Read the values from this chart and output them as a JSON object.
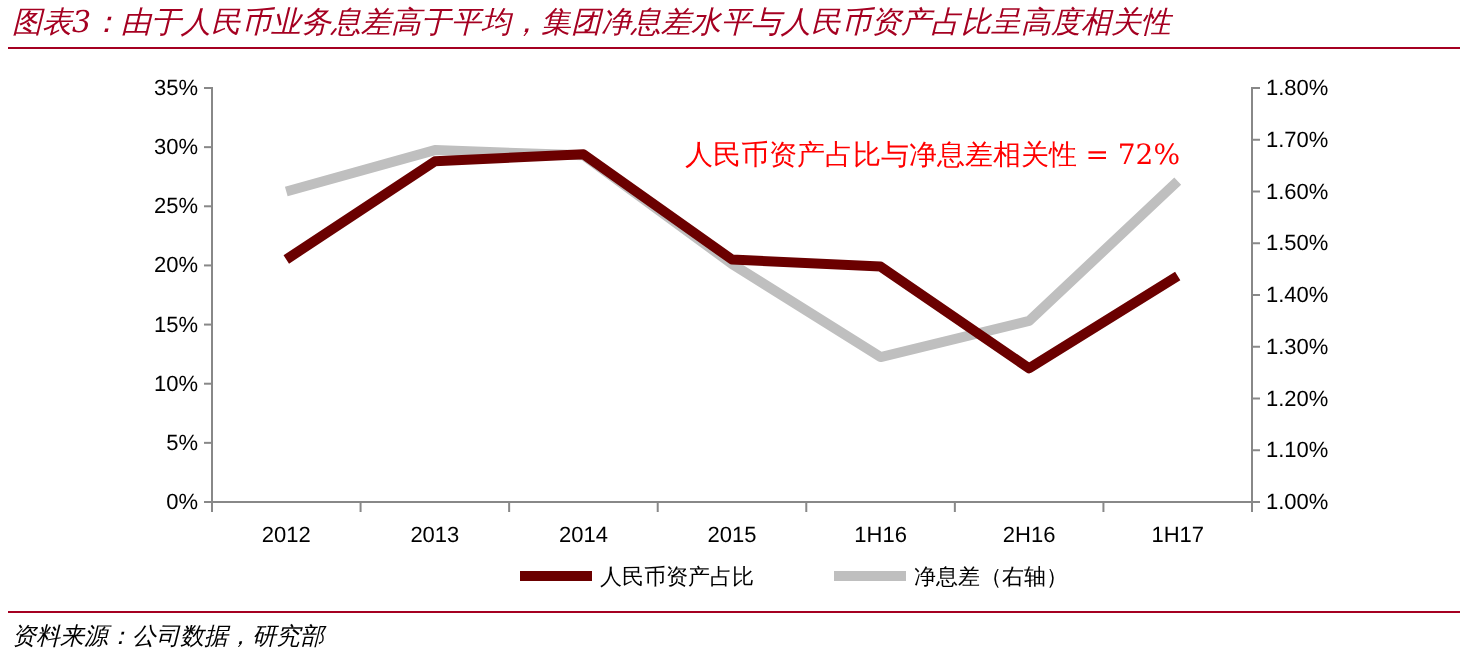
{
  "chart_data": {
    "type": "line",
    "title": "图表3：由于人民币业务息差高于平均，集团净息差水平与人民币资产占比呈高度相关性",
    "categories": [
      "2012",
      "2013",
      "2014",
      "2015",
      "1H16",
      "2H16",
      "1H17"
    ],
    "series": [
      {
        "name": "人民币资产占比",
        "color": "#6b0000",
        "values": [
          20.5,
          28.8,
          29.4,
          20.5,
          19.9,
          11.3,
          19.1
        ]
      },
      {
        "name": "净息差（右轴）",
        "color": "#bfbfbf",
        "axis": "y2",
        "values": [
          1.6,
          1.68,
          1.67,
          1.46,
          1.28,
          1.35,
          1.62
        ]
      }
    ],
    "ylim": [
      0,
      35
    ],
    "yticks": [
      {
        "value": 0,
        "label": "0%"
      },
      {
        "value": 5,
        "label": "5%"
      },
      {
        "value": 10,
        "label": "10%"
      },
      {
        "value": 15,
        "label": "15%"
      },
      {
        "value": 20,
        "label": "20%"
      },
      {
        "value": 25,
        "label": "25%"
      },
      {
        "value": 30,
        "label": "30%"
      },
      {
        "value": 35,
        "label": "35%"
      }
    ],
    "y2lim": [
      1.0,
      1.8
    ],
    "y2ticks": [
      {
        "value": 1.0,
        "label": "1.00%"
      },
      {
        "value": 1.1,
        "label": "1.10%"
      },
      {
        "value": 1.2,
        "label": "1.20%"
      },
      {
        "value": 1.3,
        "label": "1.30%"
      },
      {
        "value": 1.4,
        "label": "1.40%"
      },
      {
        "value": 1.5,
        "label": "1.50%"
      },
      {
        "value": 1.6,
        "label": "1.60%"
      },
      {
        "value": 1.7,
        "label": "1.70%"
      },
      {
        "value": 1.8,
        "label": "1.80%"
      }
    ],
    "annotations": [
      "人民币资产占比与净息差相关性 = 72%",
      "资料来源：公司数据，研究部"
    ],
    "legend": "bottom",
    "grid": false,
    "marker": "none",
    "line_style": "solid"
  }
}
